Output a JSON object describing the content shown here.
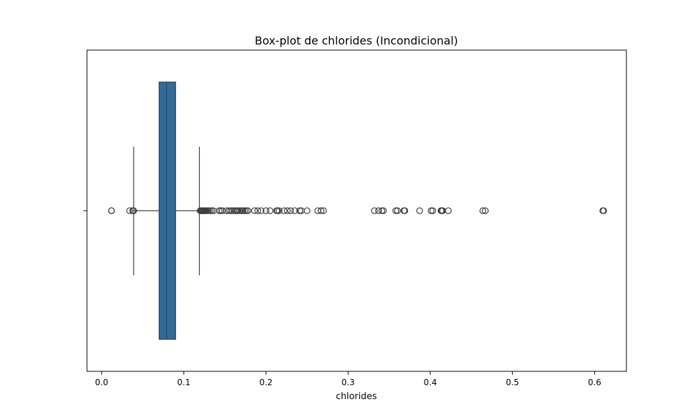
{
  "chart_data": {
    "type": "box",
    "orientation": "horizontal",
    "title": "Box-plot de chlorides (Incondicional)",
    "xlabel": "chlorides",
    "ylabel": "",
    "xlim": [
      -0.0178,
      0.6387
    ],
    "xticks": [
      0.0,
      0.1,
      0.2,
      0.3,
      0.4,
      0.5,
      0.6
    ],
    "xtick_labels": [
      "0.0",
      "0.1",
      "0.2",
      "0.3",
      "0.4",
      "0.5",
      "0.6"
    ],
    "grid": false,
    "legend": null,
    "series": [
      {
        "color": "#2f6c9e",
        "q1": 0.07,
        "median": 0.079,
        "q3": 0.09,
        "whisker_low": 0.039,
        "whisker_high": 0.119,
        "outliers": [
          0.012,
          0.012,
          0.034,
          0.038,
          0.038,
          0.039,
          0.12,
          0.121,
          0.122,
          0.123,
          0.124,
          0.125,
          0.126,
          0.127,
          0.128,
          0.13,
          0.132,
          0.134,
          0.136,
          0.143,
          0.145,
          0.147,
          0.152,
          0.155,
          0.157,
          0.159,
          0.161,
          0.163,
          0.165,
          0.166,
          0.168,
          0.17,
          0.171,
          0.172,
          0.174,
          0.176,
          0.178,
          0.186,
          0.19,
          0.194,
          0.2,
          0.205,
          0.213,
          0.214,
          0.216,
          0.222,
          0.226,
          0.23,
          0.235,
          0.241,
          0.243,
          0.25,
          0.263,
          0.267,
          0.27,
          0.332,
          0.337,
          0.341,
          0.343,
          0.358,
          0.36,
          0.368,
          0.369,
          0.387,
          0.401,
          0.403,
          0.413,
          0.414,
          0.415,
          0.422,
          0.464,
          0.467,
          0.61,
          0.611
        ]
      }
    ]
  }
}
